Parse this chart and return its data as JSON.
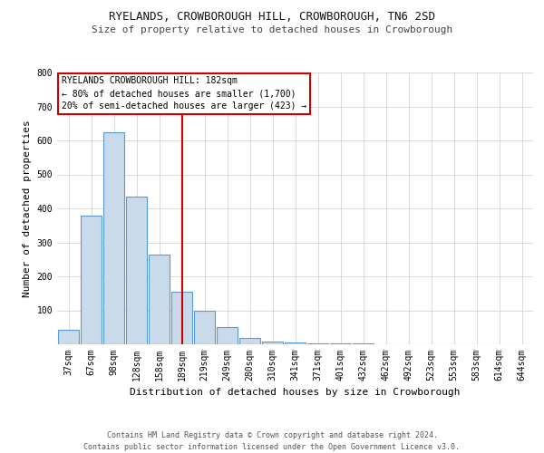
{
  "title": "RYELANDS, CROWBOROUGH HILL, CROWBOROUGH, TN6 2SD",
  "subtitle": "Size of property relative to detached houses in Crowborough",
  "xlabel": "Distribution of detached houses by size in Crowborough",
  "ylabel": "Number of detached properties",
  "categories": [
    "37sqm",
    "67sqm",
    "98sqm",
    "128sqm",
    "158sqm",
    "189sqm",
    "219sqm",
    "249sqm",
    "280sqm",
    "310sqm",
    "341sqm",
    "371sqm",
    "401sqm",
    "432sqm",
    "462sqm",
    "492sqm",
    "523sqm",
    "553sqm",
    "583sqm",
    "614sqm",
    "644sqm"
  ],
  "values": [
    42,
    380,
    625,
    435,
    265,
    155,
    100,
    50,
    18,
    8,
    5,
    3,
    2,
    2,
    1,
    1,
    1,
    0,
    0,
    0,
    0
  ],
  "bar_color": "#c9daea",
  "bar_edge_color": "#5b9bd5",
  "reference_line_index": 5,
  "reference_line_color": "#cc0000",
  "annotation_text": "RYELANDS CROWBOROUGH HILL: 182sqm\n← 80% of detached houses are smaller (1,700)\n20% of semi-detached houses are larger (423) →",
  "annotation_box_edge_color": "#cc0000",
  "ylim": [
    0,
    800
  ],
  "yticks": [
    0,
    100,
    200,
    300,
    400,
    500,
    600,
    700,
    800
  ],
  "footer_text": "Contains HM Land Registry data © Crown copyright and database right 2024.\nContains public sector information licensed under the Open Government Licence v3.0.",
  "background_color": "#ffffff",
  "grid_color": "#cccccc",
  "title_fontsize": 9,
  "subtitle_fontsize": 8,
  "axis_label_fontsize": 8,
  "tick_fontsize": 7,
  "annotation_fontsize": 7,
  "footer_fontsize": 6
}
